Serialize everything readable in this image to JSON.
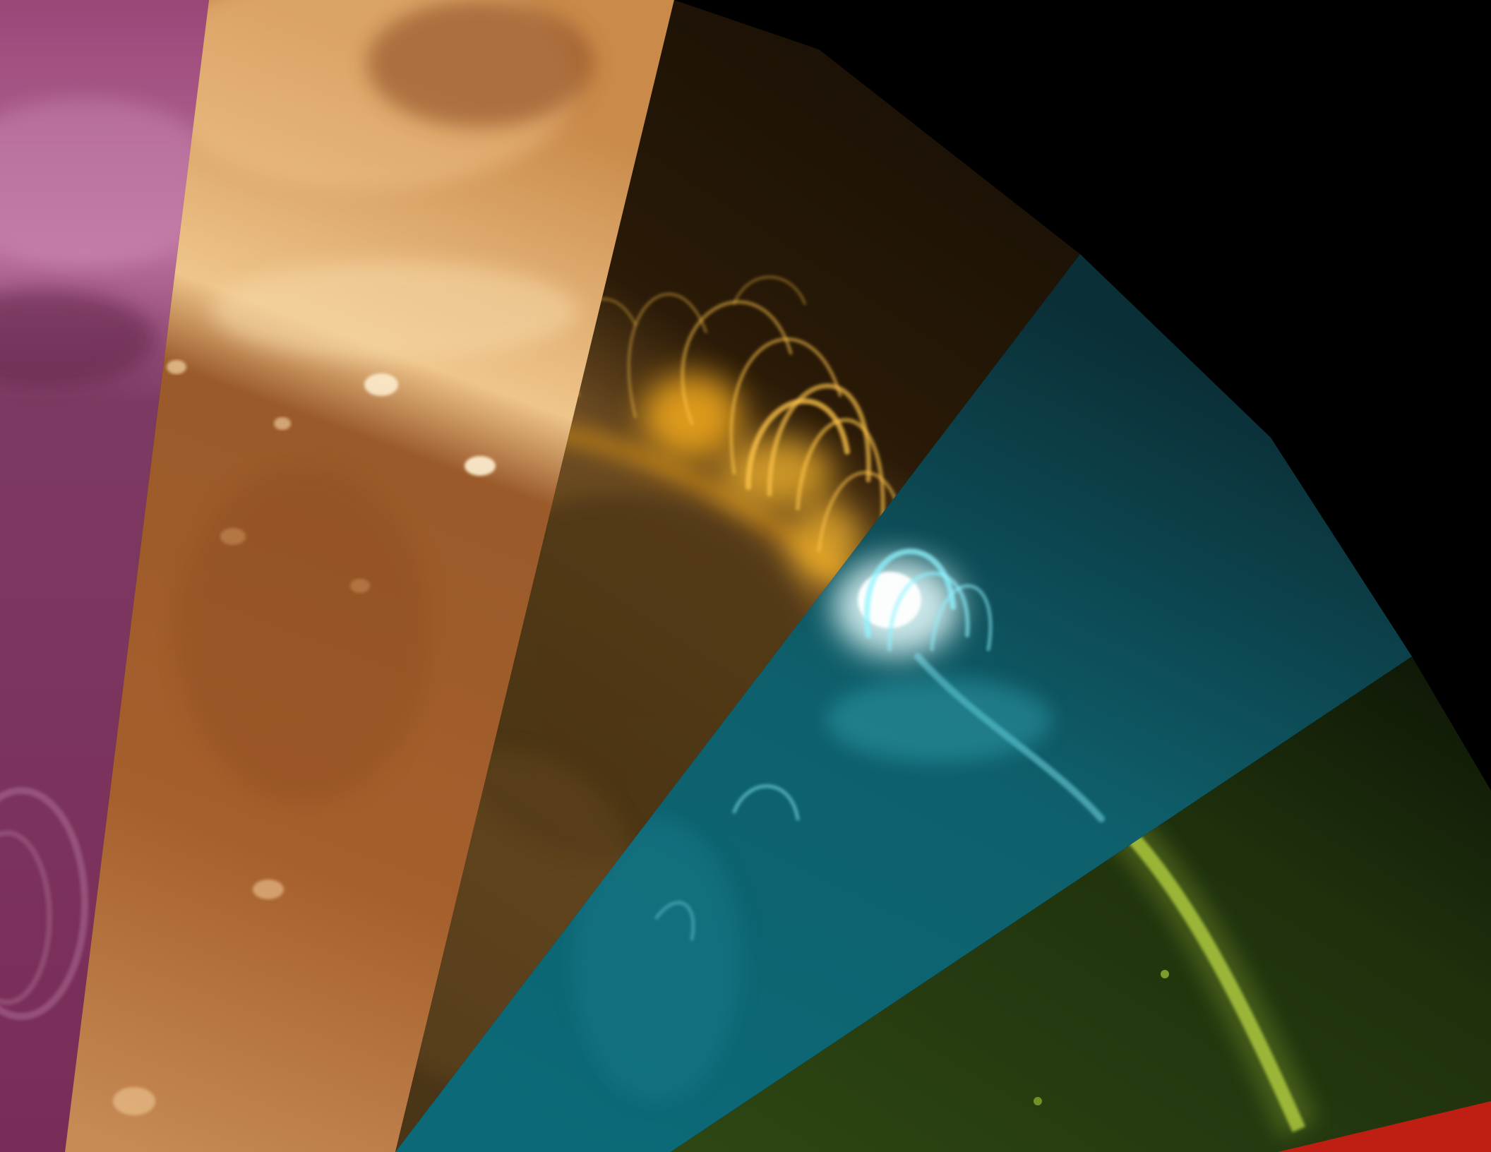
{
  "image": {
    "subject": "solar-limb-multi-wavelength-mosaic",
    "background_color": "#000000",
    "wedges": [
      {
        "name": "magenta",
        "color": "#8c2f62",
        "highlight": "#c77aa6",
        "shadow": "#4d1233"
      },
      {
        "name": "copper",
        "color": "#b86f2e",
        "highlight": "#f0c58a",
        "shadow": "#6b3515"
      },
      {
        "name": "gold",
        "color": "#6f4a1f",
        "highlight": "#ffc23a",
        "shadow": "#2a1b08"
      },
      {
        "name": "cyan",
        "color": "#0f6f7c",
        "highlight": "#eaffff",
        "shadow": "#04262b"
      },
      {
        "name": "green",
        "color": "#2f4a12",
        "highlight": "#c9e34a",
        "shadow": "#0c1505"
      },
      {
        "name": "red",
        "color": "#c81e14",
        "highlight": "#ff4a30",
        "shadow": "#5a0a06"
      }
    ]
  }
}
